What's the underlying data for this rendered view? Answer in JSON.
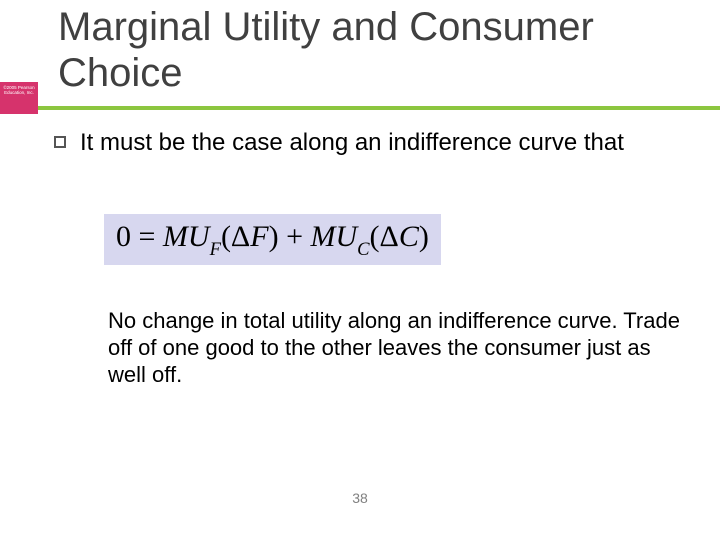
{
  "title": "Marginal Utility and Consumer Choice",
  "copyright": "©2005 Pearson Education, Inc.",
  "bullet_lead": "It must be the case along an indifference curve that",
  "equation": {
    "zero": "0",
    "eq": " = ",
    "mu": "MU",
    "subF": "F",
    "dF_open": "(Δ",
    "dF_var": "F",
    "close": ")",
    "plus": "  +  ",
    "subC": "C",
    "dC_open": "(Δ",
    "dC_var": "C"
  },
  "explanation": "No change in total utility along an indifference curve. Trade off of one good to the other leaves the consumer just as well off.",
  "page_number": "38",
  "colors": {
    "accent_green": "#8cc63f",
    "accent_pink": "#d6336c",
    "equation_bg": "#d7d7ef",
    "title_color": "#404040"
  }
}
